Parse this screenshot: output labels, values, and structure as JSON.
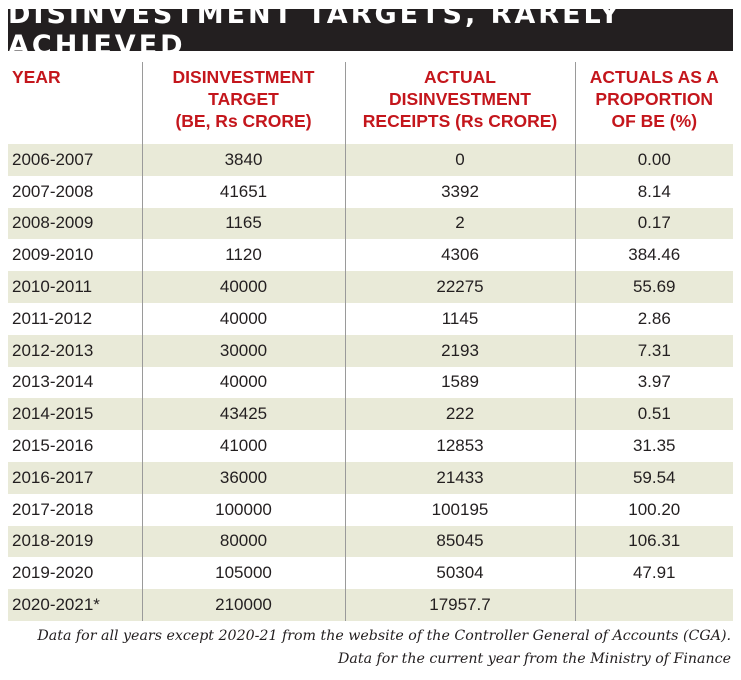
{
  "title": "DISINVESTMENT TARGETS, RARELY ACHIEVED",
  "headers": [
    [
      "YEAR"
    ],
    [
      "DISINVESTMENT",
      "TARGET",
      "(BE, Rs CRORE)"
    ],
    [
      "ACTUAL",
      "DISINVESTMENT",
      "RECEIPTS (Rs CRORE)"
    ],
    [
      "ACTUALS AS A",
      "PROPORTION",
      "OF BE (%)"
    ]
  ],
  "chart_data": {
    "type": "table",
    "title": "DISINVESTMENT TARGETS, RARELY ACHIEVED",
    "columns": [
      "YEAR",
      "DISINVESTMENT TARGET (BE, Rs CRORE)",
      "ACTUAL DISINVESTMENT RECEIPTS (Rs CRORE)",
      "ACTUALS AS A PROPORTION OF BE (%)"
    ],
    "rows": [
      [
        "2006-2007",
        "3840",
        "0",
        "0.00"
      ],
      [
        "2007-2008",
        "41651",
        "3392",
        "8.14"
      ],
      [
        "2008-2009",
        "1165",
        "2",
        "0.17"
      ],
      [
        "2009-2010",
        "1120",
        "4306",
        "384.46"
      ],
      [
        "2010-2011",
        "40000",
        "22275",
        "55.69"
      ],
      [
        "2011-2012",
        "40000",
        "1145",
        "2.86"
      ],
      [
        "2012-2013",
        "30000",
        "2193",
        "7.31"
      ],
      [
        "2013-2014",
        "40000",
        "1589",
        "3.97"
      ],
      [
        "2014-2015",
        "43425",
        "222",
        "0.51"
      ],
      [
        "2015-2016",
        "41000",
        "12853",
        "31.35"
      ],
      [
        "2016-2017",
        "36000",
        "21433",
        "59.54"
      ],
      [
        "2017-2018",
        "100000",
        "100195",
        "100.20"
      ],
      [
        "2018-2019",
        "80000",
        "85045",
        "106.31"
      ],
      [
        "2019-2020",
        "105000",
        "50304",
        "47.91"
      ],
      [
        "2020-2021*",
        "210000",
        "17957.7",
        ""
      ]
    ]
  },
  "notes": [
    "Data for all years except 2020-21 from the website of the Controller General of Accounts (CGA).",
    "Data for the current year from the Ministry of Finance"
  ],
  "colors": {
    "title_bg": "#231f20",
    "header_text": "#c4161c",
    "row_band": "#e9ead8"
  }
}
